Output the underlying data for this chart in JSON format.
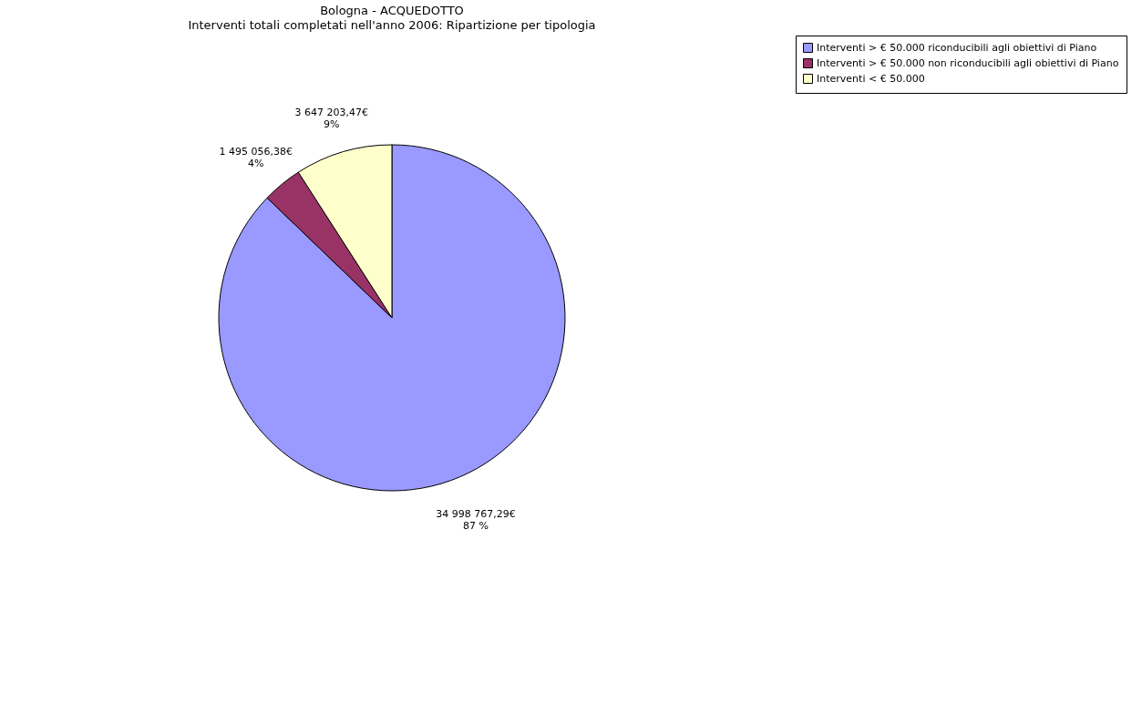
{
  "chart_data": {
    "type": "pie",
    "title": "Bologna - ACQUEDOTTO",
    "subtitle": "Interventi totali completati nell'anno 2006: Ripartizione per tipologia",
    "categories": [
      "Interventi > € 50.000 riconducibili agli obiettivi di Piano",
      "Interventi > € 50.000 non riconducibili agli obiettivi di Piano",
      "Interventi < € 50.000"
    ],
    "values": [
      34998767.29,
      1495056.38,
      3647203.47
    ],
    "colors": [
      "#9999ff",
      "#993366",
      "#ffffcc"
    ],
    "value_labels": [
      "34 998 767,29€\n87 %",
      "1 495 056,38€\n4%",
      "3 647 203,47€\n9%"
    ],
    "legend": "right"
  }
}
